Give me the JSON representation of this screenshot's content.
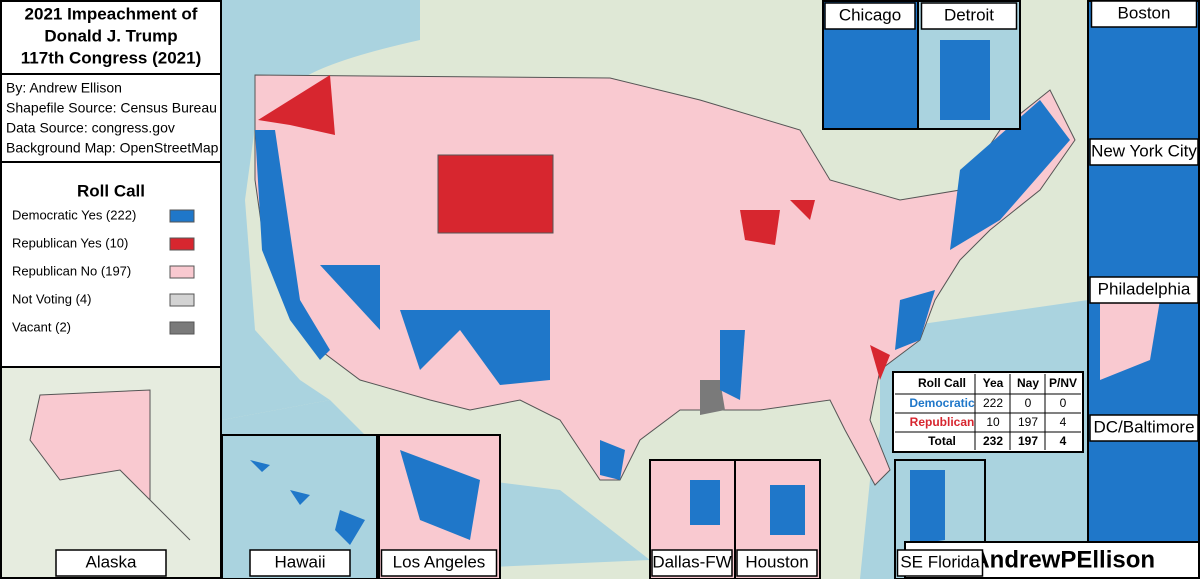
{
  "title": [
    "2021 Impeachment of",
    "Donald J. Trump",
    "117th Congress (2021)"
  ],
  "credits": [
    "By: Andrew Ellison",
    "Shapefile Source: Census Bureau",
    "Data Source: congress.gov",
    "Background Map: OpenStreetMap"
  ],
  "legend": {
    "title": "Roll Call",
    "items": [
      {
        "label": "Democratic Yes (222)",
        "color": "#1f77c9"
      },
      {
        "label": "Republican Yes (10)",
        "color": "#d7262f"
      },
      {
        "label": "Republican No (197)",
        "color": "#f9c9d0"
      },
      {
        "label": "Not Voting (4)",
        "color": "#d3d3d3"
      },
      {
        "label": "Vacant (2)",
        "color": "#7a7a7a"
      }
    ]
  },
  "table": {
    "header": [
      "Roll Call",
      "Yea",
      "Nay",
      "P/NV"
    ],
    "rows": [
      {
        "label": "Democratic",
        "color": "#1f77c9",
        "values": [
          222,
          0,
          0
        ]
      },
      {
        "label": "Republican",
        "color": "#d7262f",
        "values": [
          10,
          197,
          4
        ]
      },
      {
        "label": "Total",
        "color": "#000000",
        "values": [
          232,
          197,
          4
        ]
      }
    ]
  },
  "insets": [
    "Chicago",
    "Detroit",
    "Boston",
    "New York City",
    "Philadelphia",
    "DC/Baltimore",
    "Alaska",
    "Hawaii",
    "Los Angeles",
    "Dallas-FW",
    "Houston",
    "SE Florida"
  ],
  "handle": "@AndrewPEllison"
}
